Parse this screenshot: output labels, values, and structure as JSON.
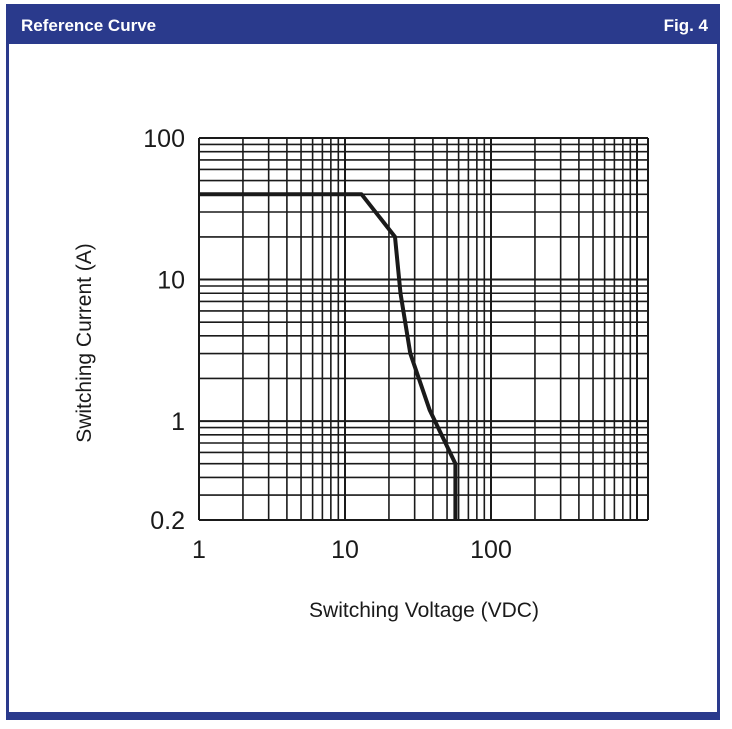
{
  "header": {
    "title": "Reference Curve",
    "figure": "Fig. 4"
  },
  "colors": {
    "brand": "#2a3a8c",
    "grid": "#1a1a1a",
    "curve": "#1a1a1a"
  },
  "chart_data": {
    "type": "line",
    "title": "",
    "xlabel": "Switching Voltage (VDC)",
    "ylabel": "Switching Current (A)",
    "x_scale": "log",
    "y_scale": "log",
    "xlim": [
      1,
      2000
    ],
    "ylim": [
      0.2,
      100
    ],
    "x_ticks": [
      {
        "value": 1,
        "label": "1"
      },
      {
        "value": 10,
        "label": "10"
      },
      {
        "value": 100,
        "label": "100"
      }
    ],
    "y_ticks": [
      {
        "value": 0.2,
        "label": "0.2"
      },
      {
        "value": 1,
        "label": "1"
      },
      {
        "value": 10,
        "label": "10"
      },
      {
        "value": 100,
        "label": "100"
      }
    ],
    "grid": true,
    "series": [
      {
        "x": [
          1,
          13,
          22,
          24,
          28,
          38,
          57,
          57
        ],
        "y": [
          40,
          40,
          20,
          8,
          3,
          1.2,
          0.5,
          0.2
        ]
      }
    ]
  }
}
